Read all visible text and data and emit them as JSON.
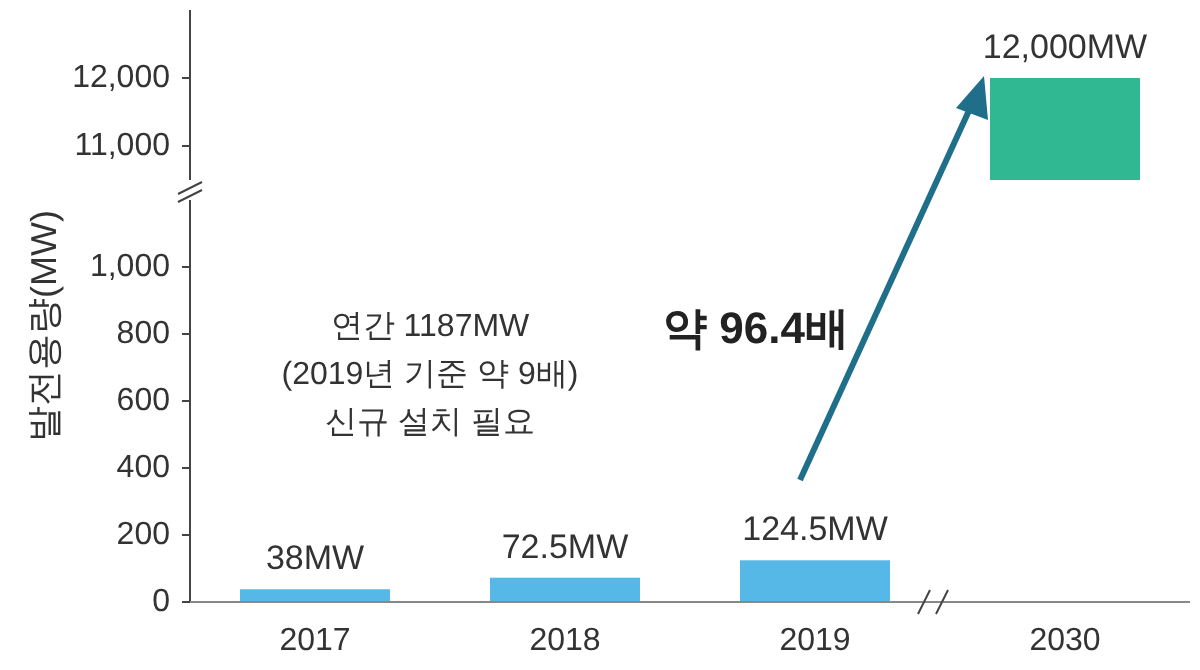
{
  "chart_data": [
    {
      "type": "bar",
      "categories": [
        "2017",
        "2018",
        "2019",
        "2030"
      ],
      "values": [
        null,
        null,
        null,
        12000
      ],
      "colors": [
        "#56b8e6",
        "#56b8e6",
        "#56b8e6",
        "#2fb892"
      ],
      "ylim": [
        10500,
        13000
      ],
      "yticks": [
        {
          "value": 11000,
          "label": "11,000"
        },
        {
          "value": 12000,
          "label": "12,000"
        }
      ],
      "value_labels": [
        null,
        null,
        null,
        "12,000MW"
      ],
      "tick_labels": "y"
    },
    {
      "type": "bar",
      "categories": [
        "2017",
        "2018",
        "2019",
        "2030"
      ],
      "values": [
        38,
        72.5,
        124.5,
        null
      ],
      "colors": [
        "#56b8e6",
        "#56b8e6",
        "#56b8e6",
        "#2fb892"
      ],
      "ylim": [
        0,
        1200
      ],
      "yticks": [
        0,
        200,
        400,
        600,
        800,
        {
          "value": 1000,
          "label": "1,000"
        }
      ],
      "ylabel": "발전용량(MW)",
      "value_labels": [
        "38MW",
        "72.5MW",
        "124.5MW",
        null
      ],
      "annotations": [
        "연간 1187MW\n(2019년 기준 약 9배)\n신규 설치 필요",
        "약 96.4배"
      ]
    }
  ]
}
